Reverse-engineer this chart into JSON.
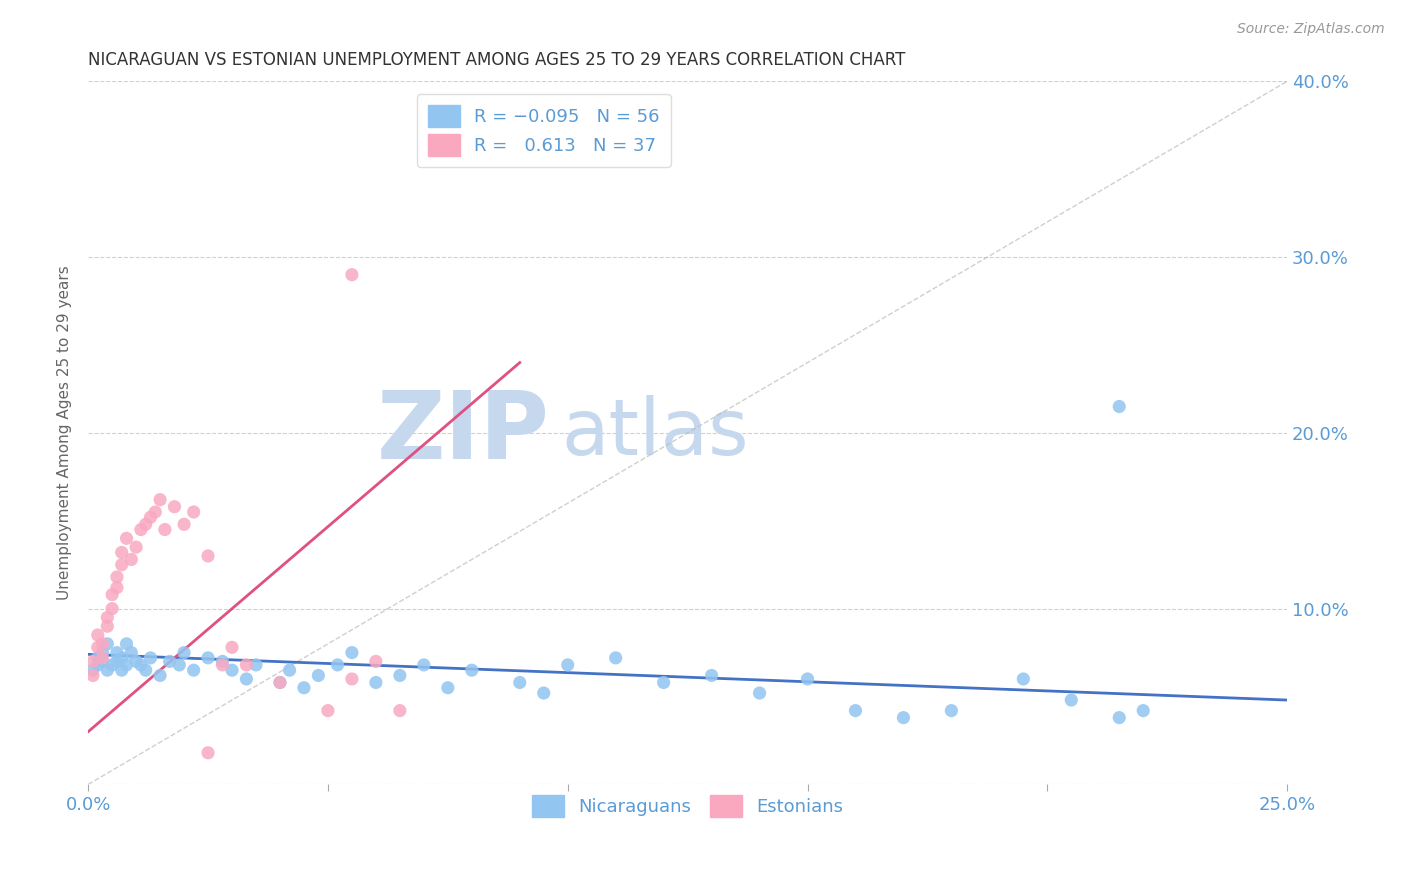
{
  "title": "NICARAGUAN VS ESTONIAN UNEMPLOYMENT AMONG AGES 25 TO 29 YEARS CORRELATION CHART",
  "source": "Source: ZipAtlas.com",
  "ylabel": "Unemployment Among Ages 25 to 29 years",
  "xlim": [
    0,
    0.25
  ],
  "ylim": [
    -0.01,
    0.42
  ],
  "plot_ylim": [
    0,
    0.4
  ],
  "xtick_positions": [
    0.0,
    0.05,
    0.1,
    0.15,
    0.2,
    0.25
  ],
  "xtick_labels": [
    "0.0%",
    "",
    "",
    "",
    "",
    "25.0%"
  ],
  "ytick_positions": [
    0.0,
    0.1,
    0.2,
    0.3,
    0.4
  ],
  "ytick_labels_right": [
    "",
    "10.0%",
    "20.0%",
    "30.0%",
    "40.0%"
  ],
  "legend_r_blue": "R = -0.095",
  "legend_n_blue": "N = 56",
  "legend_r_pink": "R =   0.613",
  "legend_n_pink": "N = 37",
  "legend_nicaraguans": "Nicaraguans",
  "legend_estonians": "Estonians",
  "blue_color": "#92C5F0",
  "pink_color": "#F9A8C0",
  "blue_line_color": "#4472C4",
  "pink_line_color": "#E05080",
  "diag_color": "#BBBBBB",
  "watermark_zip_color": "#C5D8EE",
  "watermark_atlas_color": "#C5D8EE",
  "background_color": "#FFFFFF",
  "grid_color": "#CCCCCC",
  "text_color": "#333333",
  "axis_label_color": "#5B9BD5",
  "title_color": "#333333",
  "source_color": "#999999",
  "blue_x": [
    0.001,
    0.002,
    0.002,
    0.003,
    0.003,
    0.004,
    0.004,
    0.005,
    0.006,
    0.006,
    0.007,
    0.007,
    0.008,
    0.008,
    0.009,
    0.01,
    0.011,
    0.012,
    0.013,
    0.015,
    0.017,
    0.019,
    0.02,
    0.022,
    0.025,
    0.028,
    0.03,
    0.033,
    0.035,
    0.04,
    0.042,
    0.045,
    0.048,
    0.052,
    0.055,
    0.06,
    0.065,
    0.07,
    0.075,
    0.08,
    0.09,
    0.095,
    0.1,
    0.11,
    0.12,
    0.13,
    0.14,
    0.15,
    0.16,
    0.17,
    0.18,
    0.195,
    0.205,
    0.215,
    0.22,
    0.215
  ],
  "blue_y": [
    0.065,
    0.072,
    0.068,
    0.075,
    0.07,
    0.08,
    0.065,
    0.068,
    0.075,
    0.07,
    0.072,
    0.065,
    0.08,
    0.068,
    0.075,
    0.07,
    0.068,
    0.065,
    0.072,
    0.062,
    0.07,
    0.068,
    0.075,
    0.065,
    0.072,
    0.07,
    0.065,
    0.06,
    0.068,
    0.058,
    0.065,
    0.055,
    0.062,
    0.068,
    0.075,
    0.058,
    0.062,
    0.068,
    0.055,
    0.065,
    0.058,
    0.052,
    0.068,
    0.072,
    0.058,
    0.062,
    0.052,
    0.06,
    0.042,
    0.038,
    0.042,
    0.06,
    0.048,
    0.038,
    0.042,
    0.215
  ],
  "pink_x": [
    0.001,
    0.001,
    0.002,
    0.002,
    0.003,
    0.003,
    0.004,
    0.004,
    0.005,
    0.005,
    0.006,
    0.006,
    0.007,
    0.007,
    0.008,
    0.009,
    0.01,
    0.011,
    0.012,
    0.013,
    0.014,
    0.015,
    0.016,
    0.018,
    0.02,
    0.022,
    0.025,
    0.028,
    0.03,
    0.033,
    0.04,
    0.05,
    0.055,
    0.06,
    0.065,
    0.055,
    0.025
  ],
  "pink_y": [
    0.062,
    0.07,
    0.078,
    0.085,
    0.072,
    0.08,
    0.09,
    0.095,
    0.1,
    0.108,
    0.112,
    0.118,
    0.125,
    0.132,
    0.14,
    0.128,
    0.135,
    0.145,
    0.148,
    0.152,
    0.155,
    0.162,
    0.145,
    0.158,
    0.148,
    0.155,
    0.13,
    0.068,
    0.078,
    0.068,
    0.058,
    0.042,
    0.06,
    0.07,
    0.042,
    0.29,
    0.018
  ],
  "blue_trend_x": [
    0.0,
    0.25
  ],
  "blue_trend_y": [
    0.074,
    0.048
  ],
  "pink_trend_x": [
    0.0,
    0.09
  ],
  "pink_trend_y": [
    0.03,
    0.24
  ]
}
